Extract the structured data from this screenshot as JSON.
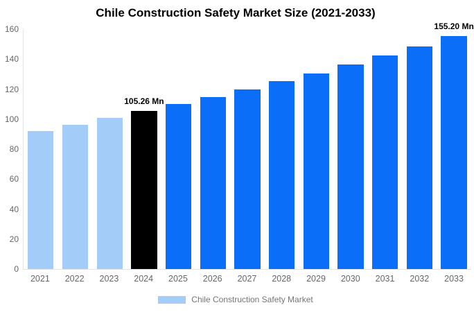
{
  "chart_data": {
    "type": "bar",
    "title": "Chile Construction Safety Market Size (2021-2033)",
    "categories": [
      "2021",
      "2022",
      "2023",
      "2024",
      "2025",
      "2026",
      "2027",
      "2028",
      "2029",
      "2030",
      "2031",
      "2032",
      "2033"
    ],
    "values": [
      92.2,
      96.4,
      100.7,
      105.26,
      109.9,
      114.7,
      119.8,
      125.1,
      130.5,
      136.3,
      142.3,
      148.6,
      155.2
    ],
    "unit": "Mn",
    "bar_colors": [
      "#a4ccf9",
      "#a4ccf9",
      "#a4ccf9",
      "#000000",
      "#0a6ef8",
      "#0a6ef8",
      "#0a6ef8",
      "#0a6ef8",
      "#0a6ef8",
      "#0a6ef8",
      "#0a6ef8",
      "#0a6ef8",
      "#0a6ef8"
    ],
    "annotations": [
      {
        "index": 3,
        "text": "105.26 Mn"
      },
      {
        "index": 12,
        "text": "155.20 Mn"
      }
    ],
    "y_ticks": [
      0,
      20,
      40,
      60,
      80,
      100,
      120,
      140,
      160
    ],
    "ylim": [
      0,
      160
    ],
    "xlabel": "",
    "ylabel": "",
    "grid": false,
    "legend_position": "bottom"
  },
  "legend": {
    "label": "Chile Construction Safety Market",
    "swatch_color": "#a4ccf9"
  },
  "colors": {
    "historical_bar": "#a4ccf9",
    "highlight_bar": "#000000",
    "forecast_bar": "#0a6ef8",
    "axis_text": "#666666",
    "axis_line": "#e3e3e3",
    "title_text": "#000000",
    "annotation_text": "#000000",
    "legend_text": "#757575",
    "background": "#ffffff"
  }
}
